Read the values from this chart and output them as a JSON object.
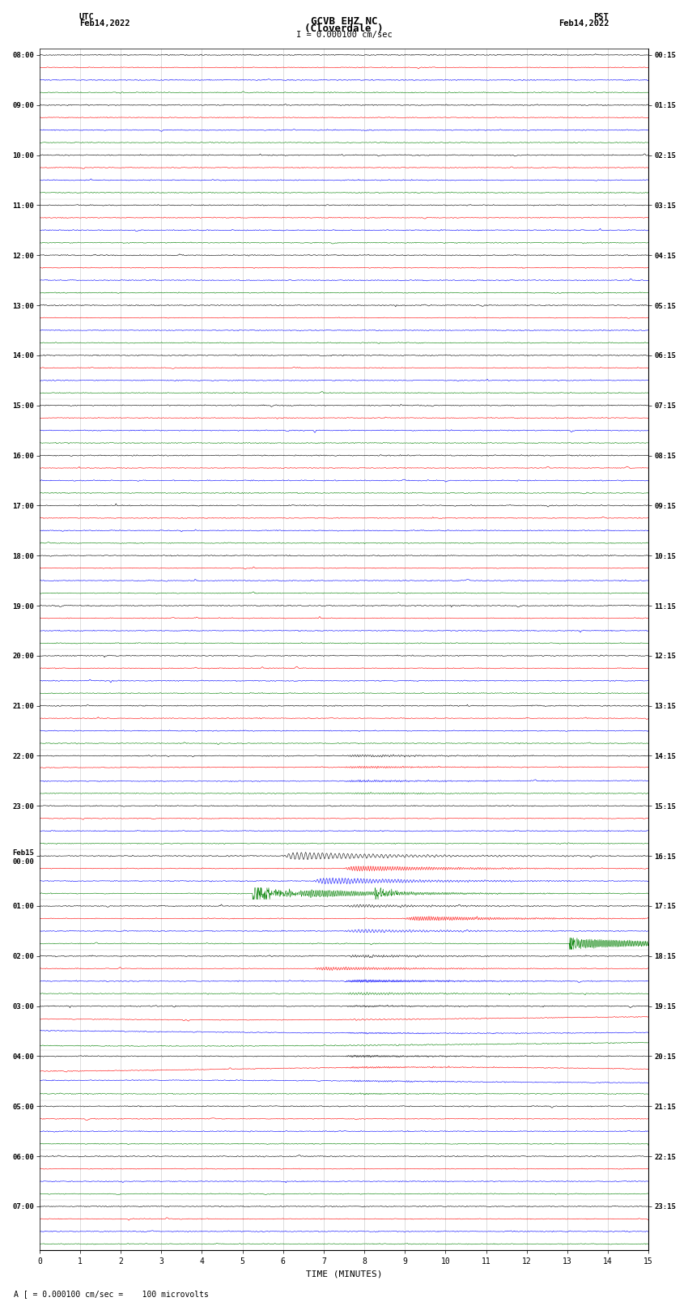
{
  "title_line1": "GCVB EHZ NC",
  "title_line2": "(Cloverdale )",
  "title_scale": "I = 0.000100 cm/sec",
  "left_label_top": "UTC",
  "left_label_date": "Feb14,2022",
  "right_label_top": "PST",
  "right_label_date": "Feb14,2022",
  "xlabel": "TIME (MINUTES)",
  "bottom_note": "A [ = 0.000100 cm/sec =    100 microvolts",
  "utc_times": [
    "08:00",
    "09:00",
    "10:00",
    "11:00",
    "12:00",
    "13:00",
    "14:00",
    "15:00",
    "16:00",
    "17:00",
    "18:00",
    "19:00",
    "20:00",
    "21:00",
    "22:00",
    "23:00",
    "Feb15\n00:00",
    "01:00",
    "02:00",
    "03:00",
    "04:00",
    "05:00",
    "06:00",
    "07:00"
  ],
  "pst_times": [
    "00:15",
    "01:15",
    "02:15",
    "03:15",
    "04:15",
    "05:15",
    "06:15",
    "07:15",
    "08:15",
    "09:15",
    "10:15",
    "11:15",
    "12:15",
    "13:15",
    "14:15",
    "15:15",
    "16:15",
    "17:15",
    "18:15",
    "19:15",
    "20:15",
    "21:15",
    "22:15",
    "23:15"
  ],
  "num_hour_blocks": 24,
  "traces_per_block": 4,
  "minutes_per_row": 15,
  "colors": [
    "black",
    "red",
    "blue",
    "green"
  ],
  "bg_color": "white",
  "grid_color": "#aaaaaa",
  "seed": 42
}
